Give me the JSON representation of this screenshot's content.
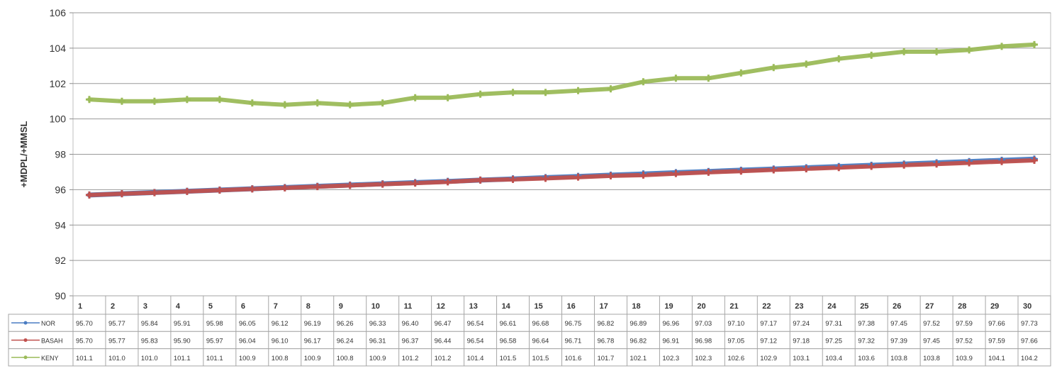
{
  "chart_data": {
    "type": "line",
    "ylabel": "+MDPL/+MMSL",
    "ylim": [
      90,
      106
    ],
    "yticks": [
      90,
      92,
      94,
      96,
      98,
      100,
      102,
      104,
      106
    ],
    "grid": true,
    "legend": "data-table",
    "categories": [
      "1",
      "2",
      "3",
      "4",
      "5",
      "6",
      "7",
      "8",
      "9",
      "10",
      "11",
      "12",
      "13",
      "14",
      "15",
      "16",
      "17",
      "18",
      "19",
      "20",
      "21",
      "22",
      "23",
      "24",
      "25",
      "26",
      "27",
      "28",
      "29",
      "30"
    ],
    "series": [
      {
        "name": "NOR",
        "color": "#4a7cc2",
        "values": [
          95.7,
          95.77,
          95.84,
          95.91,
          95.98,
          96.05,
          96.12,
          96.19,
          96.26,
          96.33,
          96.4,
          96.47,
          96.54,
          96.61,
          96.68,
          96.75,
          96.82,
          96.89,
          96.96,
          97.03,
          97.1,
          97.17,
          97.24,
          97.31,
          97.38,
          97.45,
          97.52,
          97.59,
          97.66,
          97.73
        ],
        "labels": [
          "95.70",
          "95.77",
          "95.84",
          "95.91",
          "95.98",
          "96.05",
          "96.12",
          "96.19",
          "96.26",
          "96.33",
          "96.40",
          "96.47",
          "96.54",
          "96.61",
          "96.68",
          "96.75",
          "96.82",
          "96.89",
          "96.96",
          "97.03",
          "97.10",
          "97.17",
          "97.24",
          "97.31",
          "97.38",
          "97.45",
          "97.52",
          "97.59",
          "97.66",
          "97.73"
        ]
      },
      {
        "name": "BASAH",
        "color": "#c0504d",
        "values": [
          95.7,
          95.77,
          95.83,
          95.9,
          95.97,
          96.04,
          96.1,
          96.17,
          96.24,
          96.31,
          96.37,
          96.44,
          96.54,
          96.58,
          96.64,
          96.71,
          96.78,
          96.82,
          96.91,
          96.98,
          97.05,
          97.12,
          97.18,
          97.25,
          97.32,
          97.39,
          97.45,
          97.52,
          97.59,
          97.66
        ],
        "labels": [
          "95.70",
          "95.77",
          "95.83",
          "95.90",
          "95.97",
          "96.04",
          "96.10",
          "96.17",
          "96.24",
          "96.31",
          "96.37",
          "96.44",
          "96.54",
          "96.58",
          "96.64",
          "96.71",
          "96.78",
          "96.82",
          "96.91",
          "96.98",
          "97.05",
          "97.12",
          "97.18",
          "97.25",
          "97.32",
          "97.39",
          "97.45",
          "97.52",
          "97.59",
          "97.66"
        ]
      },
      {
        "name": "KENY",
        "color": "#9bbb59",
        "values": [
          101.1,
          101.0,
          101.0,
          101.1,
          101.1,
          100.9,
          100.8,
          100.9,
          100.8,
          100.9,
          101.2,
          101.2,
          101.4,
          101.5,
          101.5,
          101.6,
          101.7,
          102.1,
          102.3,
          102.3,
          102.6,
          102.9,
          103.1,
          103.4,
          103.6,
          103.8,
          103.8,
          103.9,
          104.1,
          104.2
        ],
        "labels": [
          "101.1",
          "101.0",
          "101.0",
          "101.1",
          "101.1",
          "100.9",
          "100.8",
          "100.9",
          "100.8",
          "100.9",
          "101.2",
          "101.2",
          "101.4",
          "101.5",
          "101.5",
          "101.6",
          "101.7",
          "102.1",
          "102.3",
          "102.3",
          "102.6",
          "102.9",
          "103.1",
          "103.4",
          "103.6",
          "103.8",
          "103.8",
          "103.9",
          "104.1",
          "104.2"
        ]
      }
    ]
  }
}
